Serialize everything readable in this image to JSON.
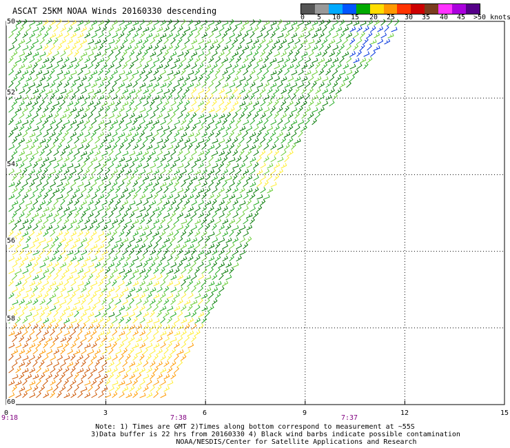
{
  "title": "ASCAT 25KM NOAA Winds 20160330 descending",
  "legend": {
    "labels": [
      "0",
      "5",
      "10",
      "15",
      "20",
      "25",
      "30",
      "35",
      "40",
      "45",
      ">50 knots"
    ],
    "colors": [
      "#555555",
      "#999999",
      "#00aaff",
      "#0055ff",
      "#00aa00",
      "#ffdd00",
      "#ff9900",
      "#ff3300",
      "#cc0000",
      "#7a3c1e",
      "#ff33ff",
      "#aa00dd",
      "#550088"
    ]
  },
  "map": {
    "lat_labels": [
      "50",
      "52",
      "54",
      "56",
      "58",
      "60"
    ],
    "lon_labels": [
      "0",
      "3",
      "6",
      "9",
      "12",
      "15"
    ],
    "time_labels": [
      "9:18",
      "7:38",
      "7:37"
    ],
    "wind_colors": {
      "dark_green": "#007700",
      "green": "#22aa22",
      "light_green": "#66cc33",
      "yellow": "#ffee33",
      "orange": "#ff9900",
      "dark_orange": "#cc5500",
      "blue": "#0033dd"
    },
    "swath_edge_deg": [
      [
        2.5,
        50
      ],
      [
        12,
        50
      ],
      [
        11.1,
        51
      ],
      [
        9,
        53
      ],
      [
        8.3,
        54
      ],
      [
        7.2,
        56
      ],
      [
        6,
        58
      ]
    ]
  },
  "notes": [
    "Note: 1) Times are GMT 2)Times along bottom correspond to measurement at ~55S",
    "3)Data buffer is 22 hrs from 20160330 4) Black wind barbs indicate possible contamination",
    "NOAA/NESDIS/Center for Satellite Applications and Research"
  ]
}
